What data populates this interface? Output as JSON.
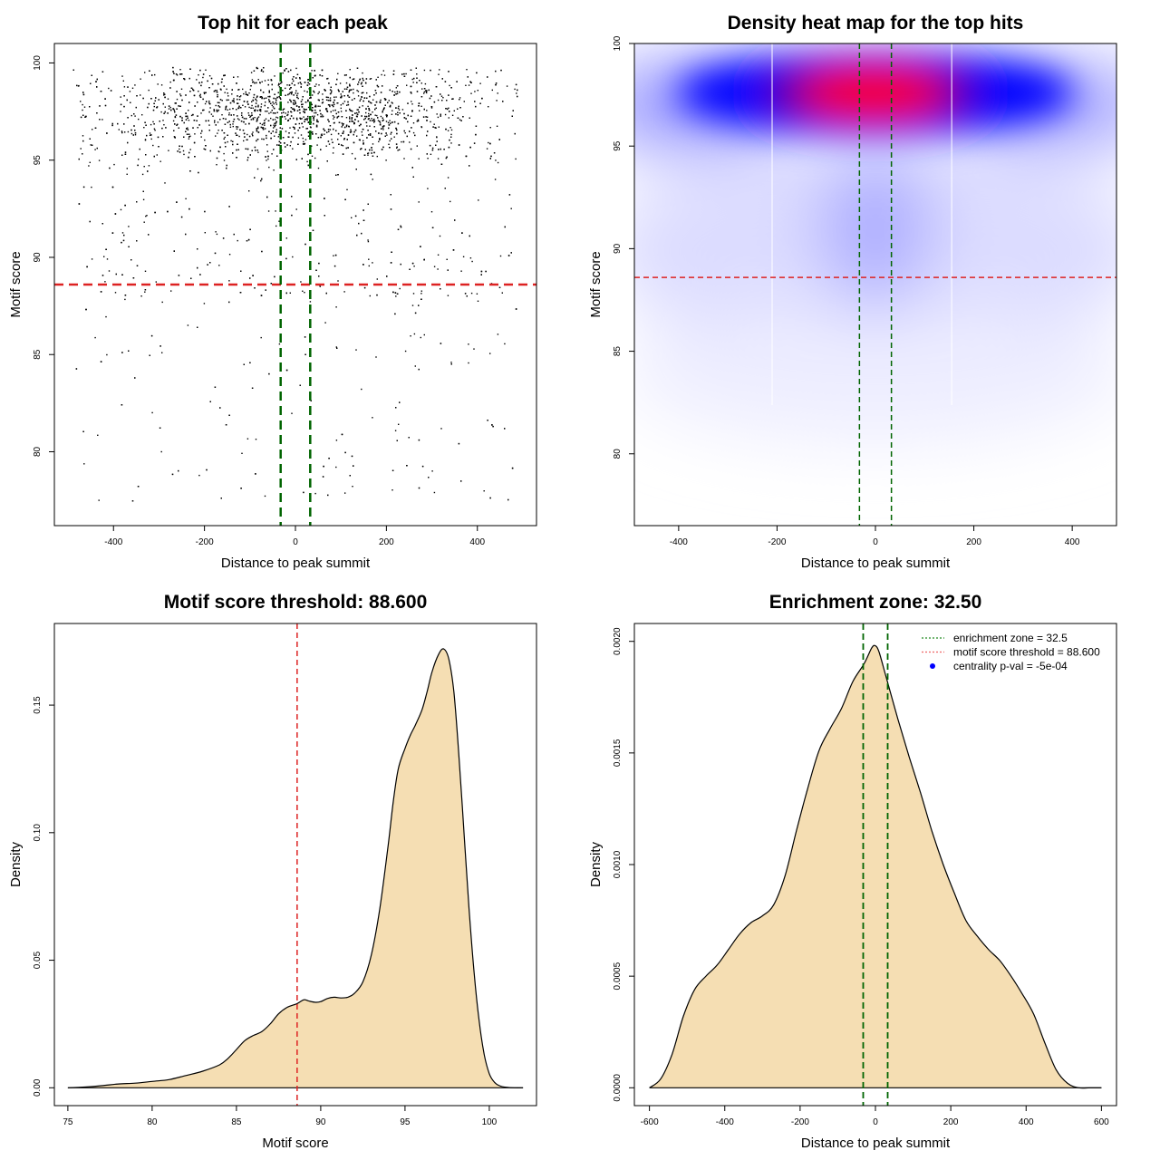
{
  "chart_data": [
    {
      "id": "scatter",
      "type": "scatter",
      "title": "Top hit for each peak",
      "xlabel": "Distance to peak summit",
      "ylabel": "Motif score",
      "xlim": [
        -530,
        530
      ],
      "ylim": [
        76.2,
        101
      ],
      "xticks": [
        -400,
        -200,
        0,
        200,
        400
      ],
      "yticks": [
        80,
        85,
        90,
        95,
        100
      ],
      "threshold_line": {
        "axis": "y",
        "value": 88.6,
        "color": "#dd2222"
      },
      "zone_lines": {
        "axis": "x",
        "values": [
          -32.5,
          32.5
        ],
        "color": "#006400"
      },
      "points_description": "approx. 3500 top-hit points, x uniform in [-490,490], y concentrated 95-99.5 and centered near x=0",
      "point_color": "#000000"
    },
    {
      "id": "heatmap",
      "type": "heatmap",
      "title": "Density heat map for the top hits",
      "xlabel": "Distance to peak summit",
      "ylabel": "Motif score",
      "xlim": [
        -490,
        490
      ],
      "ylim": [
        76.5,
        100
      ],
      "xticks": [
        -400,
        -200,
        0,
        200,
        400
      ],
      "yticks": [
        80,
        85,
        90,
        95,
        100
      ],
      "threshold_line": {
        "axis": "y",
        "value": 88.6,
        "color": "#dd2222"
      },
      "zone_lines": {
        "axis": "x",
        "values": [
          -32.5,
          32.5
        ],
        "color": "#006400"
      },
      "white_lines_x": [
        -210,
        155
      ],
      "density_peak": {
        "x": 0,
        "y": 97.5
      },
      "colors": [
        "#ffffff",
        "#0000ff",
        "#ff0000"
      ]
    },
    {
      "id": "score-density",
      "type": "area",
      "title": "Motif score threshold: 88.600",
      "xlabel": "Motif score",
      "ylabel": "Density",
      "xlim": [
        74.2,
        102.8
      ],
      "ylim": [
        -0.007,
        0.182
      ],
      "xticks": [
        75,
        80,
        85,
        90,
        95,
        100
      ],
      "yticks": [
        0.0,
        0.05,
        0.1,
        0.15
      ],
      "ytick_labels": [
        "0.00",
        "0.05",
        "0.10",
        "0.15"
      ],
      "threshold_line": {
        "axis": "x",
        "value": 88.6,
        "color": "#dd2222"
      },
      "fill_color": "#f5deb3",
      "x": [
        75,
        76,
        77,
        78,
        79,
        80,
        81,
        82,
        83,
        84,
        84.5,
        85,
        85.5,
        86,
        86.5,
        87,
        87.5,
        88,
        88.6,
        89,
        89.3,
        89.7,
        90,
        90.4,
        90.8,
        91.2,
        91.6,
        92,
        92.5,
        93,
        93.5,
        94,
        94.3,
        94.6,
        95,
        95.3,
        95.6,
        96,
        96.3,
        96.6,
        97,
        97.3,
        97.6,
        97.9,
        98.2,
        98.5,
        98.8,
        99.1,
        99.4,
        99.7,
        100,
        100.3,
        100.6,
        101,
        101.5,
        102
      ],
      "y": [
        0.0,
        0.0003,
        0.0008,
        0.0015,
        0.0018,
        0.0025,
        0.0032,
        0.0048,
        0.0065,
        0.009,
        0.0115,
        0.015,
        0.0185,
        0.0205,
        0.022,
        0.025,
        0.029,
        0.0315,
        0.033,
        0.0345,
        0.034,
        0.0335,
        0.0338,
        0.035,
        0.0355,
        0.0352,
        0.0355,
        0.037,
        0.0415,
        0.052,
        0.07,
        0.095,
        0.112,
        0.125,
        0.133,
        0.138,
        0.142,
        0.148,
        0.155,
        0.163,
        0.17,
        0.172,
        0.168,
        0.155,
        0.13,
        0.1,
        0.07,
        0.045,
        0.026,
        0.013,
        0.0055,
        0.0022,
        0.0008,
        0.0002,
        0.0,
        0.0
      ]
    },
    {
      "id": "distance-density",
      "type": "area",
      "title": "Enrichment zone: 32.50",
      "xlabel": "Distance to peak summit",
      "ylabel": "Density",
      "xlim": [
        -640,
        640
      ],
      "ylim": [
        -8e-05,
        0.00208
      ],
      "xticks": [
        -600,
        -400,
        -200,
        0,
        200,
        400,
        600
      ],
      "yticks": [
        0.0,
        0.0005,
        0.001,
        0.0015,
        0.002
      ],
      "ytick_labels": [
        "0.0000",
        "0.0005",
        "0.0010",
        "0.0015",
        "0.0020"
      ],
      "zone_lines": {
        "axis": "x",
        "values": [
          -32.5,
          32.5
        ],
        "color": "#006400"
      },
      "fill_color": "#f5deb3",
      "x": [
        -600,
        -570,
        -540,
        -510,
        -480,
        -450,
        -420,
        -390,
        -360,
        -330,
        -300,
        -270,
        -240,
        -210,
        -180,
        -150,
        -120,
        -90,
        -60,
        -30,
        -10,
        0,
        10,
        30,
        60,
        90,
        120,
        150,
        180,
        210,
        240,
        270,
        300,
        330,
        360,
        390,
        420,
        450,
        480,
        510,
        540,
        570,
        600
      ],
      "y": [
        0.0,
        4e-05,
        0.00015,
        0.00032,
        0.00044,
        0.0005,
        0.00055,
        0.00062,
        0.00069,
        0.00074,
        0.00077,
        0.00082,
        0.00095,
        0.00115,
        0.00134,
        0.00151,
        0.00161,
        0.0017,
        0.00182,
        0.0019,
        0.00197,
        0.00198,
        0.00195,
        0.00183,
        0.00165,
        0.00148,
        0.00132,
        0.00115,
        0.001,
        0.00087,
        0.00075,
        0.00068,
        0.00062,
        0.00057,
        0.0005,
        0.00042,
        0.00033,
        0.0002,
        8e-05,
        2e-05,
        0.0,
        0.0,
        0.0
      ],
      "legend": {
        "position": "top-right",
        "entries": [
          {
            "label": "enrichment zone = 32.5",
            "symbol": "dotted-line",
            "color": "#228b22"
          },
          {
            "label": "motif score threshold = 88.600",
            "symbol": "dotted-line",
            "color": "#ee6666"
          },
          {
            "label": "centrality p-val = -5e-04",
            "symbol": "dot",
            "color": "#0000ff"
          }
        ]
      }
    }
  ]
}
